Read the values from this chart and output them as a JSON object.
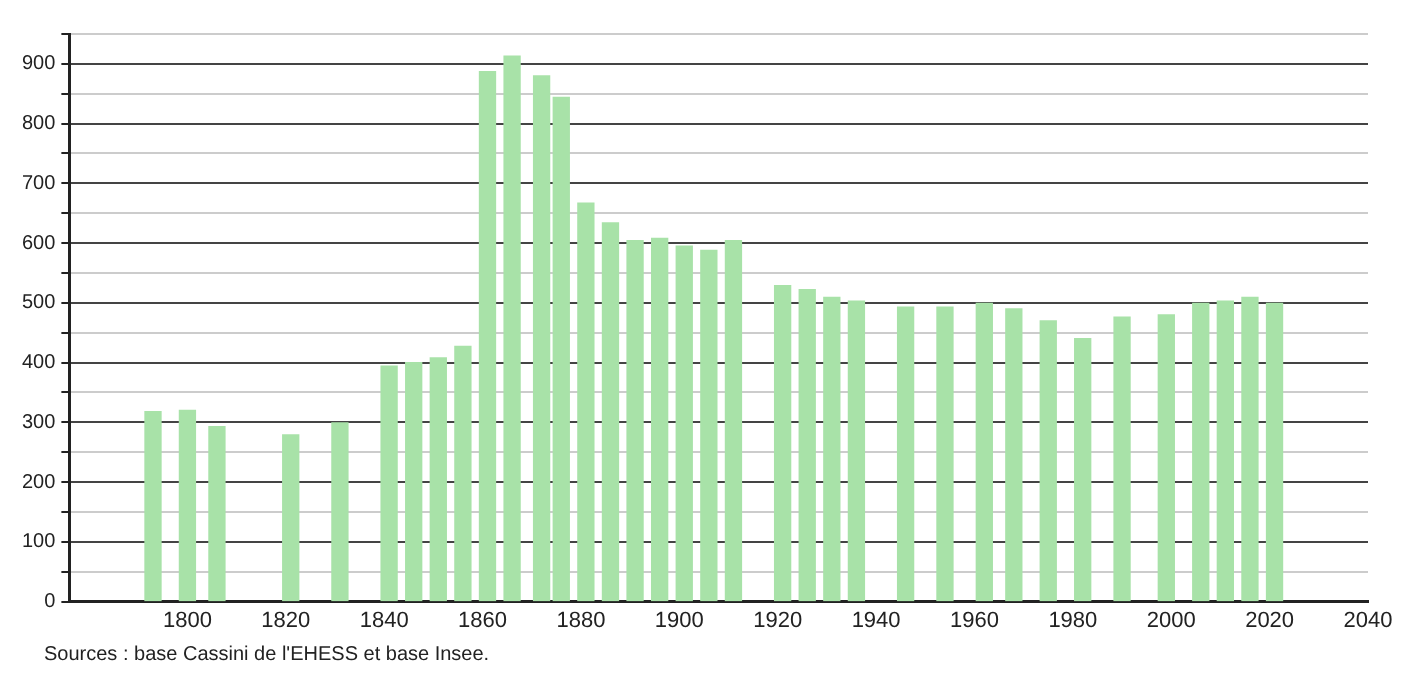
{
  "chart_data": {
    "type": "bar",
    "color": "#a8e2a8",
    "x": [
      1793,
      1800,
      1806,
      1821,
      1831,
      1841,
      1846,
      1851,
      1856,
      1861,
      1866,
      1872,
      1876,
      1881,
      1886,
      1891,
      1896,
      1901,
      1906,
      1911,
      1921,
      1926,
      1931,
      1936,
      1946,
      1954,
      1962,
      1968,
      1975,
      1982,
      1990,
      1999,
      2006,
      2011,
      2016,
      2021
    ],
    "values": [
      318,
      320,
      293,
      279,
      299,
      394,
      400,
      408,
      427,
      887,
      913,
      880,
      844,
      667,
      634,
      604,
      608,
      595,
      588,
      604,
      529,
      522,
      509,
      503,
      493,
      493,
      499,
      490,
      470,
      440,
      476,
      480,
      499,
      503,
      509,
      499
    ],
    "xlim": [
      1776,
      2040
    ],
    "xticks": [
      1800,
      1820,
      1840,
      1860,
      1880,
      1900,
      1920,
      1940,
      1960,
      1980,
      2000,
      2020,
      2040
    ],
    "ylim": [
      0,
      950
    ],
    "yticks": [
      0,
      {
        "value": 50,
        "label": null
      },
      100,
      {
        "value": 150,
        "label": null
      },
      200,
      {
        "value": 250,
        "label": null
      },
      300,
      {
        "value": 350,
        "label": null
      },
      400,
      {
        "value": 450,
        "label": null
      },
      500,
      {
        "value": 550,
        "label": null
      },
      600,
      {
        "value": 650,
        "label": null
      },
      700,
      {
        "value": 750,
        "label": null
      },
      800,
      {
        "value": 850,
        "label": null
      },
      900,
      {
        "value": 950,
        "label": null
      }
    ],
    "grid": "y",
    "legend": false,
    "annotations": [
      "Sources : base Cassini de l'EHESS et base Insee."
    ]
  }
}
